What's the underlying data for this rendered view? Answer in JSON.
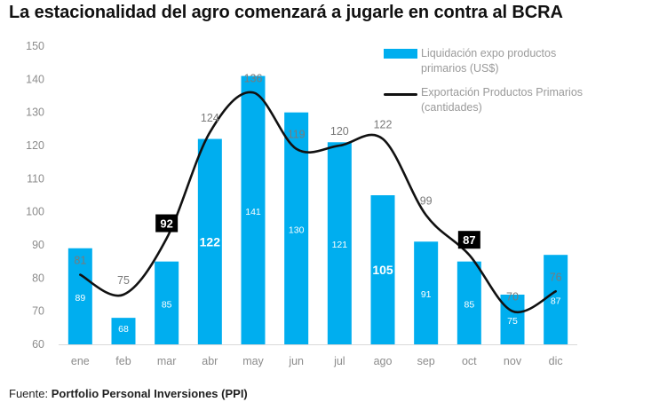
{
  "title": "La estacionalidad del agro comenzará a jugarle en contra al BCRA",
  "source": {
    "prefix": "Fuente: ",
    "name": "Portfolio Personal Inversiones (PPI)"
  },
  "colors": {
    "bar": "#00aeef",
    "line": "#111111",
    "axis_text": "#8c8c8c",
    "callout_bg": "#000000",
    "callout_text": "#ffffff"
  },
  "legend": {
    "bar_label": "Liquidación expo productos primarios (US$)",
    "line_label": "Exportación Productos Primarios (cantidades)"
  },
  "chart_data": {
    "type": "bar",
    "title": "La estacionalidad del agro comenzará a jugarle en contra al BCRA",
    "categories": [
      "ene",
      "feb",
      "mar",
      "abr",
      "may",
      "jun",
      "jul",
      "ago",
      "sep",
      "oct",
      "nov",
      "dic"
    ],
    "ylim": [
      60,
      150
    ],
    "yticks": [
      60,
      70,
      80,
      90,
      100,
      110,
      120,
      130,
      140,
      150
    ],
    "grid": false,
    "legend_position": "top-right",
    "series": [
      {
        "name": "Liquidación expo productos primarios (US$)",
        "kind": "bar",
        "values": [
          89,
          68,
          85,
          122,
          141,
          130,
          121,
          105,
          91,
          85,
          75,
          87
        ],
        "emphasized_labels": [
          "abr",
          "ago"
        ]
      },
      {
        "name": "Exportación Productos Primarios (cantidades)",
        "kind": "line",
        "smooth": true,
        "values": [
          81,
          75,
          92,
          124,
          136,
          119,
          120,
          122,
          99,
          87,
          70,
          76
        ],
        "callouts": [
          "mar",
          "oct"
        ]
      }
    ]
  }
}
